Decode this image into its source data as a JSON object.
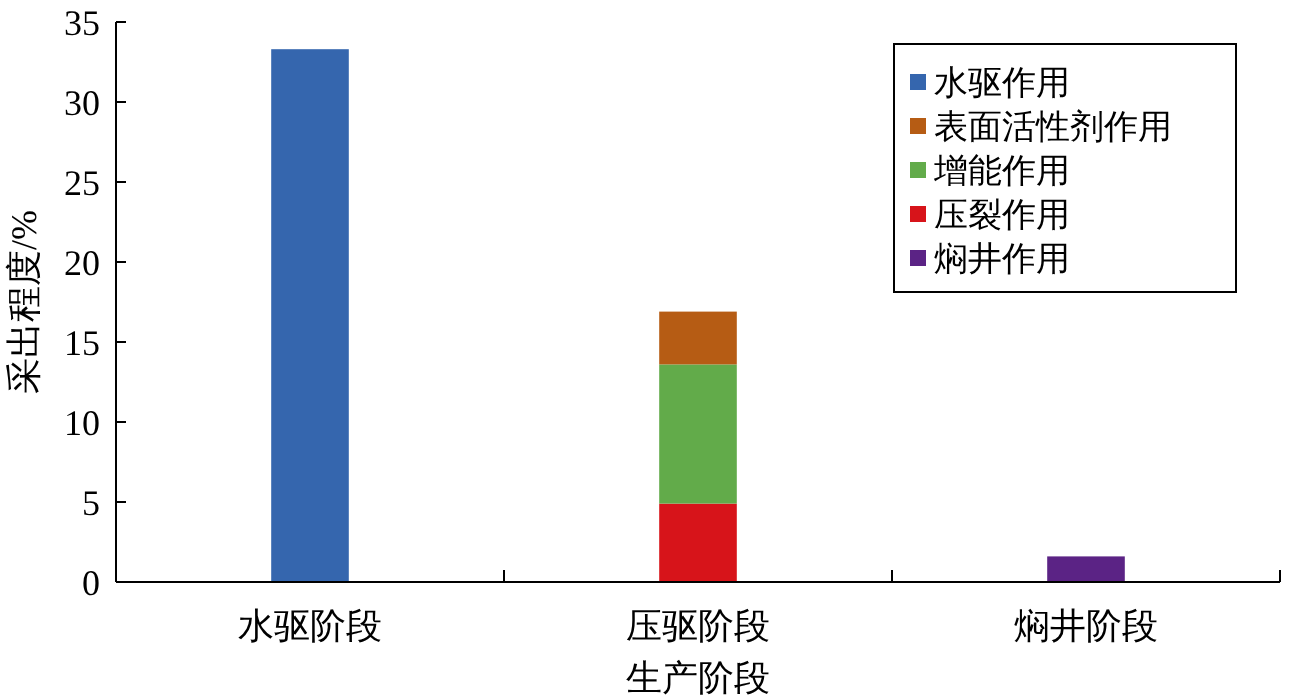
{
  "chart_data": {
    "type": "bar",
    "stacked": true,
    "xlabel": "生产阶段",
    "ylabel": "采出程度/%",
    "categories": [
      "水驱阶段",
      "压驱阶段",
      "焖井阶段"
    ],
    "series": [
      {
        "name": "焖井作用",
        "color": "#5b2385",
        "values": [
          0,
          0,
          1.6
        ]
      },
      {
        "name": "压裂作用",
        "color": "#d7141a",
        "values": [
          0,
          4.9,
          0
        ]
      },
      {
        "name": "增能作用",
        "color": "#62ab4a",
        "values": [
          0,
          8.7,
          0
        ]
      },
      {
        "name": "表面活性剂作用",
        "color": "#b65c14",
        "values": [
          0,
          3.3,
          0
        ]
      },
      {
        "name": "水驱作用",
        "color": "#3566ae",
        "values": [
          33.3,
          0,
          0
        ]
      }
    ],
    "ylim": [
      0,
      35
    ],
    "yticks": [
      0,
      5,
      10,
      15,
      20,
      25,
      30,
      35
    ],
    "legend": "top right"
  }
}
